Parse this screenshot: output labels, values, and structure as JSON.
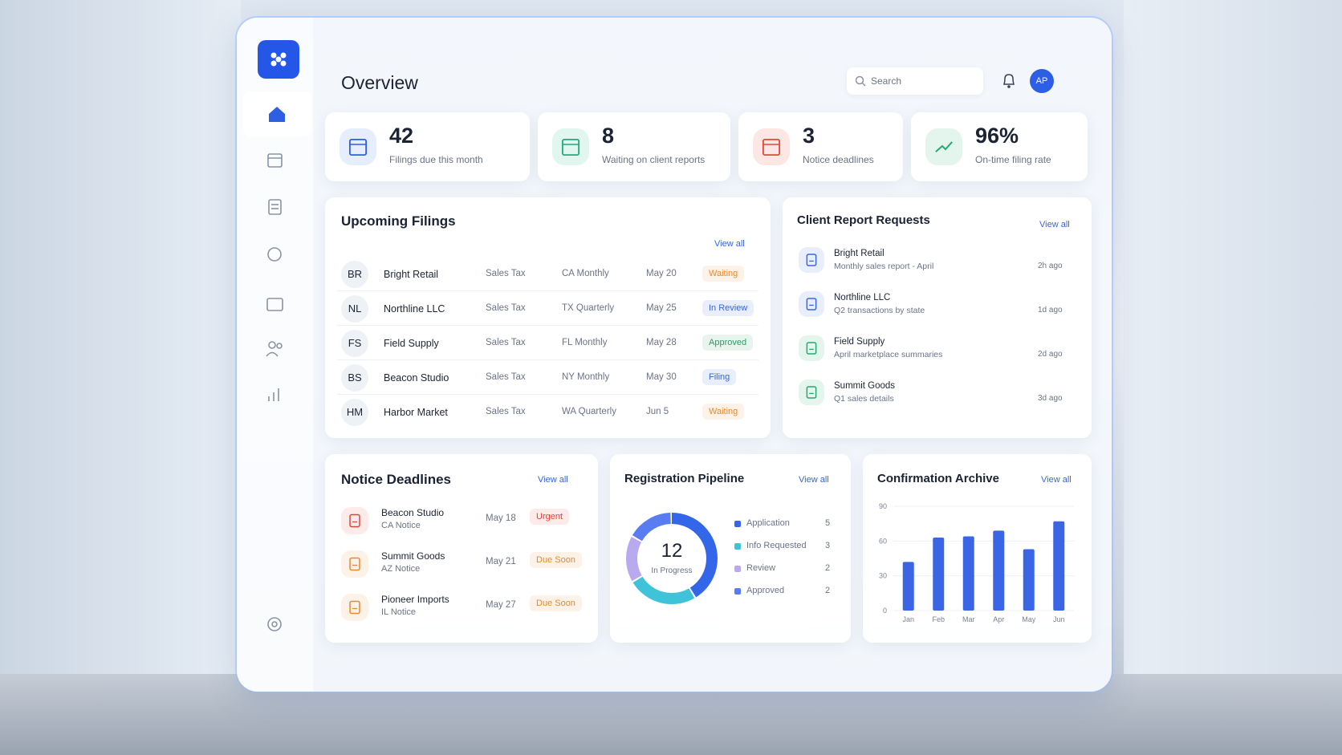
{
  "header": {
    "title": "Overview",
    "search_placeholder": "Search",
    "avatar": "AP"
  },
  "stats": [
    {
      "value": "42",
      "label": "Filings due this month"
    },
    {
      "value": "8",
      "label": "Waiting on client reports"
    },
    {
      "value": "3",
      "label": "Notice deadlines"
    },
    {
      "value": "96%",
      "label": "On-time filing rate"
    }
  ],
  "upcoming_filings": {
    "title": "Upcoming Filings",
    "view_all": "View all",
    "rows": [
      {
        "initials": "BR",
        "client": "Bright Retail",
        "tax": "Sales Tax",
        "schedule": "CA Monthly",
        "date": "May 20",
        "status": "Waiting",
        "status_color": "#e8892b"
      },
      {
        "initials": "NL",
        "client": "Northline LLC",
        "tax": "Sales Tax",
        "schedule": "TX Quarterly",
        "date": "May 25",
        "status": "In Review",
        "status_color": "#3866e0"
      },
      {
        "initials": "FS",
        "client": "Field Supply",
        "tax": "Sales Tax",
        "schedule": "FL Monthly",
        "date": "May 28",
        "status": "Approved",
        "status_color": "#2a9d62"
      },
      {
        "initials": "BS",
        "client": "Beacon Studio",
        "tax": "Sales Tax",
        "schedule": "NY Monthly",
        "date": "May 30",
        "status": "Filing",
        "status_color": "#3866e0"
      },
      {
        "initials": "HM",
        "client": "Harbor Market",
        "tax": "Sales Tax",
        "schedule": "WA Quarterly",
        "date": "Jun 5",
        "status": "Waiting",
        "status_color": "#e8892b"
      }
    ]
  },
  "client_report_requests": {
    "title": "Client Report Requests",
    "view_all": "View all",
    "items": [
      {
        "client": "Bright Retail",
        "description": "Monthly sales report - April",
        "time": "2h ago"
      },
      {
        "client": "Northline LLC",
        "description": "Q2 transactions by state",
        "time": "1d ago"
      },
      {
        "client": "Field Supply",
        "description": "April marketplace summaries",
        "time": "2d ago"
      },
      {
        "client": "Summit Goods",
        "description": "Q1 sales details",
        "time": "3d ago"
      }
    ]
  },
  "notice_deadlines": {
    "title": "Notice Deadlines",
    "view_all": "View all",
    "items": [
      {
        "client": "Beacon Studio",
        "notice": "CA Notice",
        "date": "May 18",
        "status": "Urgent",
        "status_color": "#e0453a"
      },
      {
        "client": "Summit Goods",
        "notice": "AZ Notice",
        "date": "May 21",
        "status": "Due Soon",
        "status_color": "#e8892b"
      },
      {
        "client": "Pioneer Imports",
        "notice": "IL Notice",
        "date": "May 27",
        "status": "Due Soon",
        "status_color": "#e8892b"
      }
    ]
  },
  "registration_pipeline": {
    "title": "Registration Pipeline",
    "view_all": "View all",
    "chart": {
      "type": "donut",
      "center_value": "12",
      "center_label": "In Progress",
      "categories": [
        "Application",
        "Info Requested",
        "Review",
        "Approved"
      ],
      "values": [
        5,
        3,
        2,
        2
      ],
      "colors": [
        "#3366e8",
        "#3fc3d8",
        "#b9aaf0",
        "#5a7cf2"
      ]
    }
  },
  "confirmation_archive": {
    "title": "Confirmation Archive",
    "view_all": "View all",
    "chart": {
      "type": "bar",
      "categories": [
        "Jan",
        "Feb",
        "Mar",
        "Apr",
        "May",
        "Jun"
      ],
      "values": [
        42,
        63,
        64,
        69,
        53,
        77
      ],
      "color": "#3a66e6",
      "ylim": [
        0,
        90
      ],
      "yticks": [
        0,
        30,
        60,
        90
      ],
      "grid": true
    }
  }
}
